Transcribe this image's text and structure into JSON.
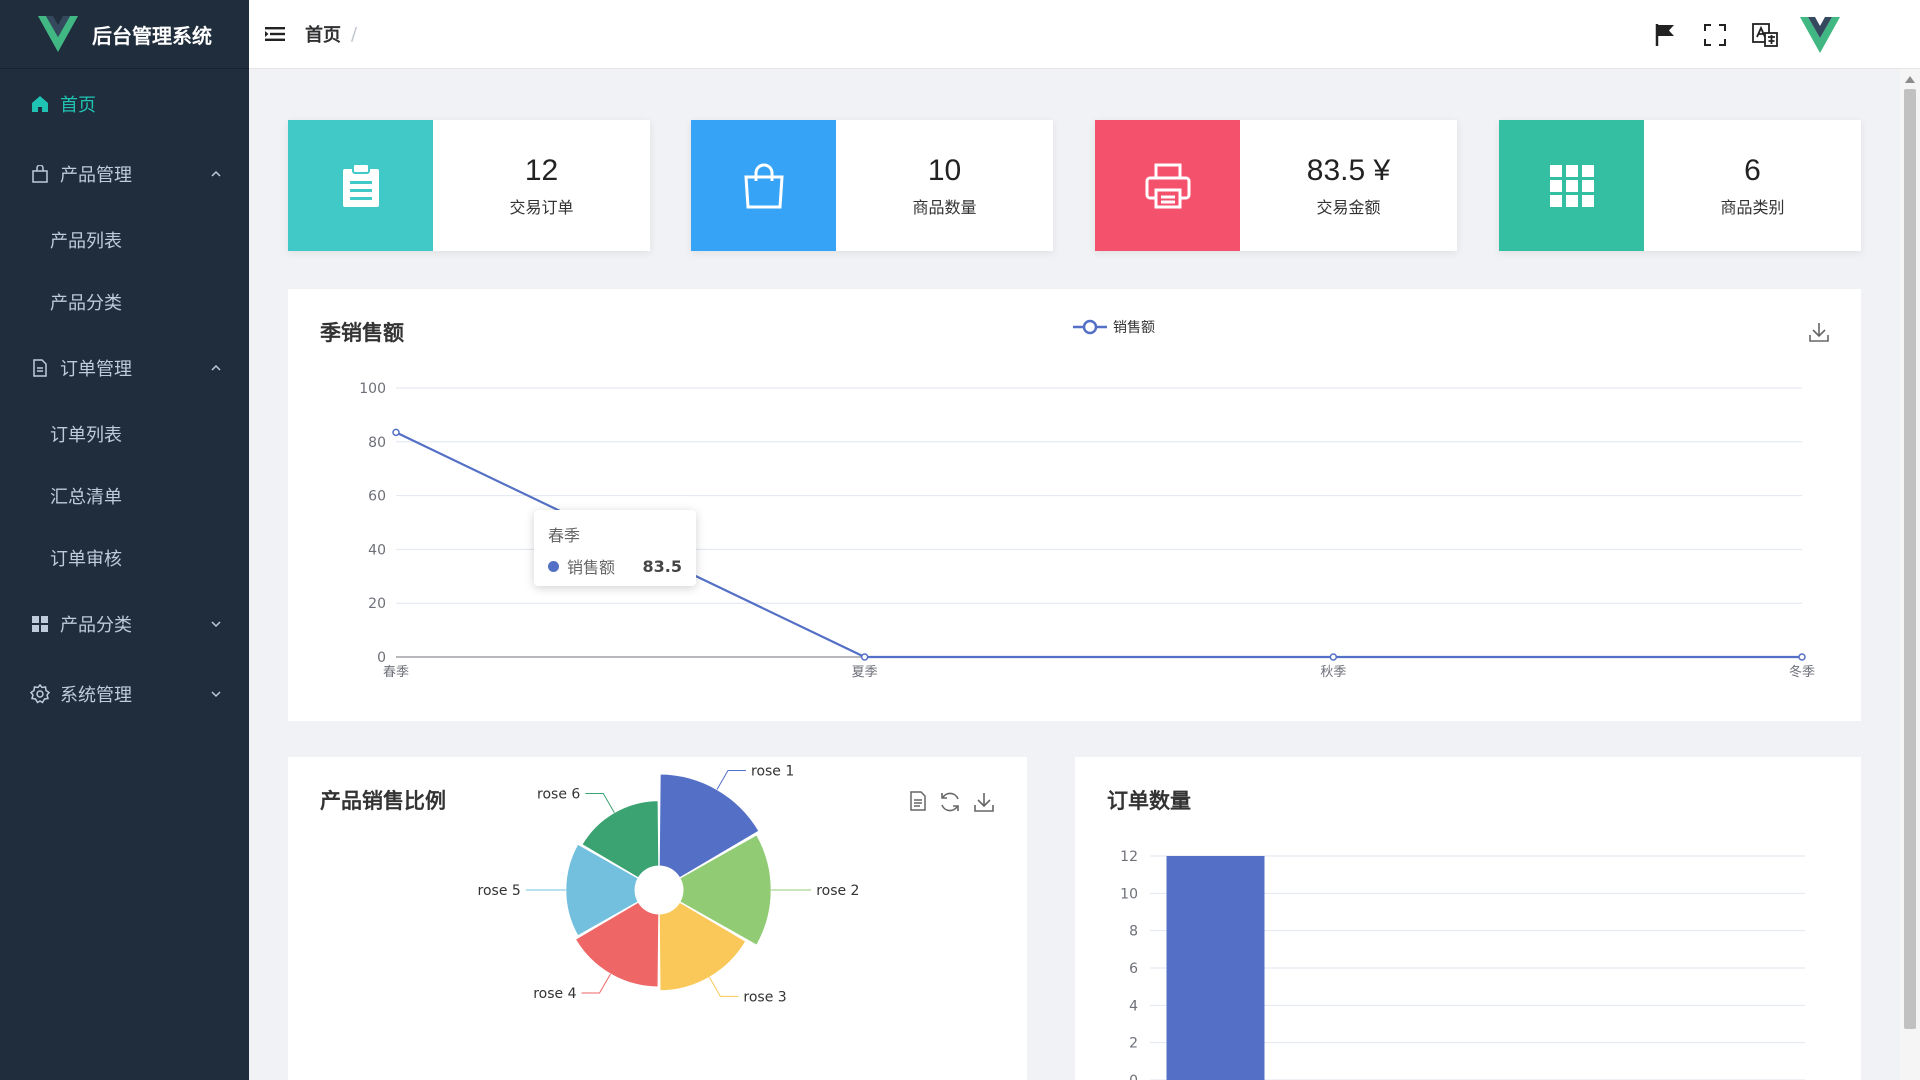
{
  "app": {
    "title": "后台管理系统"
  },
  "sidebar": {
    "items": [
      {
        "label": "首页",
        "active": true
      },
      {
        "label": "产品管理",
        "expanded": true,
        "children": [
          "产品列表",
          "产品分类"
        ]
      },
      {
        "label": "订单管理",
        "expanded": true,
        "children": [
          "订单列表",
          "汇总清单",
          "订单审核"
        ]
      },
      {
        "label": "产品分类",
        "expanded": false
      },
      {
        "label": "系统管理",
        "expanded": false
      }
    ]
  },
  "header": {
    "breadcrumb": [
      "首页"
    ],
    "breadcrumb_separator": "/",
    "icons": [
      "flag-icon",
      "fullscreen-icon",
      "translate-icon",
      "vue-logo-icon"
    ]
  },
  "stats": [
    {
      "value": "12",
      "label": "交易订单",
      "color": "#40c9c6",
      "icon": "clipboard-icon"
    },
    {
      "value": "10",
      "label": "商品数量",
      "color": "#36a3f7",
      "icon": "shopping-bag-icon"
    },
    {
      "value": "83.5 ¥",
      "label": "交易金额",
      "color": "#f4516c",
      "icon": "printer-icon"
    },
    {
      "value": "6",
      "label": "商品类别",
      "color": "#34bfa3",
      "icon": "grid-icon"
    }
  ],
  "line_panel": {
    "title": "季销售额",
    "tooltip": {
      "title": "春季",
      "series": "销售额",
      "value": "83.5"
    }
  },
  "pie_panel": {
    "title": "产品销售比例"
  },
  "bar_panel": {
    "title": "订单数量"
  },
  "colors": {
    "accent": "#20c3b3",
    "sidebar": "#1f2d3d",
    "line": "#5470c6"
  },
  "chart_data": [
    {
      "type": "line",
      "categories": [
        "春季",
        "夏季",
        "秋季",
        "冬季"
      ],
      "series": [
        {
          "name": "销售额",
          "values": [
            83.5,
            0,
            0,
            0
          ]
        }
      ],
      "ylim": [
        0,
        100
      ],
      "yticks": [
        0,
        20,
        40,
        60,
        80,
        100
      ],
      "grid": true,
      "legend": "top-center"
    },
    {
      "type": "pie",
      "rose": true,
      "labels": [
        "rose 1",
        "rose 2",
        "rose 3",
        "rose 4",
        "rose 5",
        "rose 6"
      ],
      "values": [
        40,
        38,
        32,
        30,
        28,
        26
      ],
      "colors": [
        "#5470c6",
        "#91cc75",
        "#fac858",
        "#ee6666",
        "#73c0de",
        "#3ba272"
      ]
    },
    {
      "type": "bar",
      "values": [
        12
      ],
      "ylim": [
        0,
        12
      ],
      "yticks": [
        0,
        2,
        4,
        6,
        8,
        10,
        12
      ],
      "grid": true,
      "color": "#5470c6"
    }
  ]
}
